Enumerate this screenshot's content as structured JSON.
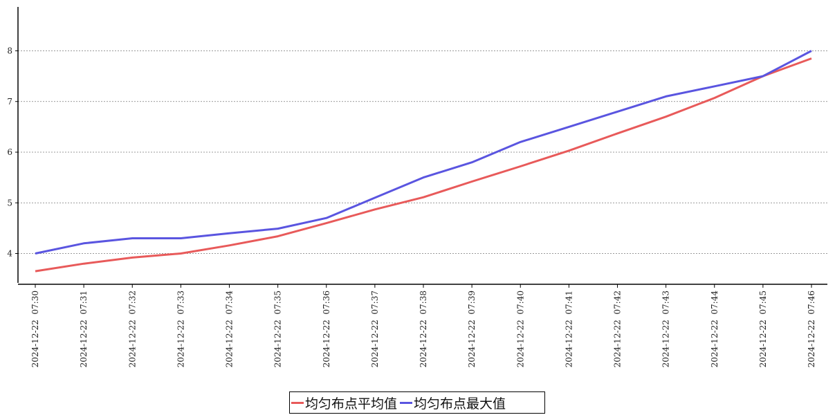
{
  "chart_data": {
    "type": "line",
    "title": "",
    "xlabel": "",
    "ylabel": "",
    "categories": [
      "2024-12-22  07:30",
      "2024-12-22  07:31",
      "2024-12-22  07:32",
      "2024-12-22  07:33",
      "2024-12-22  07:34",
      "2024-12-22  07:35",
      "2024-12-22  07:36",
      "2024-12-22  07:37",
      "2024-12-22  07:38",
      "2024-12-22  07:39",
      "2024-12-22  07:40",
      "2024-12-22  07:41",
      "2024-12-22  07:42",
      "2024-12-22  07:43",
      "2024-12-22  07:44",
      "2024-12-22  07:45",
      "2024-12-22  07:46"
    ],
    "yticks": [
      4,
      5,
      6,
      7,
      8
    ],
    "ylim": [
      3.4,
      8.9
    ],
    "grid": "horizontal-dashed",
    "legend_position": "bottom-center",
    "series": [
      {
        "name": "均匀布点平均值",
        "color": "#e85a5a",
        "values": [
          3.65,
          3.8,
          3.92,
          4.0,
          4.16,
          4.34,
          4.6,
          4.87,
          5.11,
          5.42,
          5.72,
          6.03,
          6.37,
          6.7,
          7.07,
          7.5,
          7.85
        ]
      },
      {
        "name": "均匀布点最大值",
        "color": "#5a55e0",
        "values": [
          4.0,
          4.2,
          4.3,
          4.3,
          4.4,
          4.49,
          4.7,
          5.1,
          5.5,
          5.8,
          6.2,
          6.5,
          6.8,
          7.1,
          7.3,
          7.5,
          8.0
        ]
      }
    ]
  }
}
